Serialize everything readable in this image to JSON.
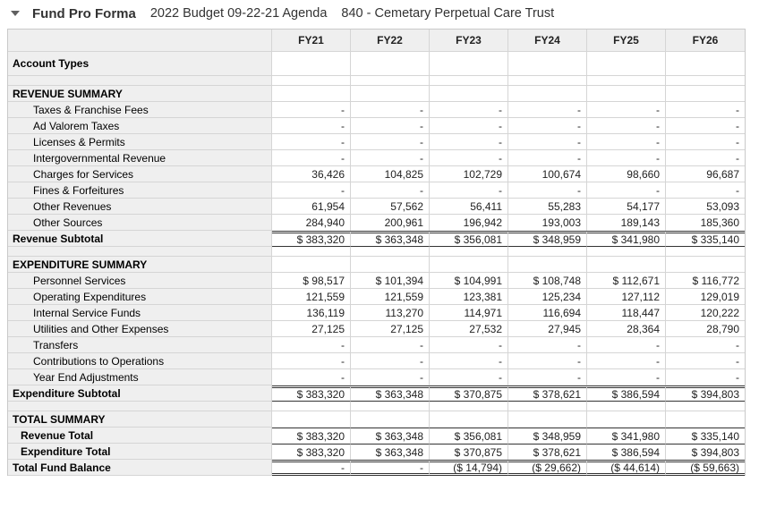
{
  "header": {
    "title": "Fund Pro Forma",
    "budget": "2022 Budget 09-22-21 Agenda",
    "fund": "840 - Cemetary Perpetual Care Trust",
    "collapse_icon": "caret-down-icon"
  },
  "colors": {
    "label_column_bg": "#efefef",
    "grid_border": "#d5d5d5",
    "emphasis_border": "#333333",
    "title_text": "#333333"
  },
  "table": {
    "columns": [
      "FY21",
      "FY22",
      "FY23",
      "FY24",
      "FY25",
      "FY26"
    ],
    "rows": [
      {
        "label": "Account Types",
        "type": "group",
        "cells": [
          "",
          "",
          "",
          "",
          "",
          ""
        ]
      },
      {
        "label": "",
        "type": "spacer",
        "cells": [
          "",
          "",
          "",
          "",
          "",
          ""
        ]
      },
      {
        "label": "REVENUE SUMMARY",
        "type": "section",
        "cells": [
          "",
          "",
          "",
          "",
          "",
          ""
        ]
      },
      {
        "label": "Taxes & Franchise Fees",
        "type": "detail",
        "cells": [
          "-",
          "-",
          "-",
          "-",
          "-",
          "-"
        ]
      },
      {
        "label": "Ad Valorem Taxes",
        "type": "detail",
        "cells": [
          "-",
          "-",
          "-",
          "-",
          "-",
          "-"
        ]
      },
      {
        "label": "Licenses & Permits",
        "type": "detail",
        "cells": [
          "-",
          "-",
          "-",
          "-",
          "-",
          "-"
        ]
      },
      {
        "label": "Intergovernmental Revenue",
        "type": "detail",
        "cells": [
          "-",
          "-",
          "-",
          "-",
          "-",
          "-"
        ]
      },
      {
        "label": "Charges for Services",
        "type": "detail",
        "cells": [
          "36,426",
          "104,825",
          "102,729",
          "100,674",
          "98,660",
          "96,687"
        ]
      },
      {
        "label": "Fines & Forfeitures",
        "type": "detail",
        "cells": [
          "-",
          "-",
          "-",
          "-",
          "-",
          "-"
        ]
      },
      {
        "label": "Other Revenues",
        "type": "detail",
        "cells": [
          "61,954",
          "57,562",
          "56,411",
          "55,283",
          "54,177",
          "53,093"
        ]
      },
      {
        "label": "Other Sources",
        "type": "detail",
        "cells": [
          "284,940",
          "200,961",
          "196,942",
          "193,003",
          "189,143",
          "185,360"
        ]
      },
      {
        "label": "Revenue Subtotal",
        "type": "subtotal",
        "cells": [
          "$ 383,320",
          "$ 363,348",
          "$ 356,081",
          "$ 348,959",
          "$ 341,980",
          "$ 335,140"
        ]
      },
      {
        "label": "",
        "type": "spacer",
        "cells": [
          "",
          "",
          "",
          "",
          "",
          ""
        ]
      },
      {
        "label": "EXPENDITURE SUMMARY",
        "type": "section",
        "cells": [
          "",
          "",
          "",
          "",
          "",
          ""
        ]
      },
      {
        "label": "Personnel Services",
        "type": "detail",
        "cells": [
          "$ 98,517",
          "$ 101,394",
          "$ 104,991",
          "$ 108,748",
          "$ 112,671",
          "$ 116,772"
        ]
      },
      {
        "label": "Operating Expenditures",
        "type": "detail",
        "cells": [
          "121,559",
          "121,559",
          "123,381",
          "125,234",
          "127,112",
          "129,019"
        ]
      },
      {
        "label": "Internal Service Funds",
        "type": "detail",
        "cells": [
          "136,119",
          "113,270",
          "114,971",
          "116,694",
          "118,447",
          "120,222"
        ]
      },
      {
        "label": "Utilities and Other Expenses",
        "type": "detail",
        "cells": [
          "27,125",
          "27,125",
          "27,532",
          "27,945",
          "28,364",
          "28,790"
        ]
      },
      {
        "label": "Transfers",
        "type": "detail",
        "cells": [
          "-",
          "-",
          "-",
          "-",
          "-",
          "-"
        ]
      },
      {
        "label": "Contributions to Operations",
        "type": "detail",
        "cells": [
          "-",
          "-",
          "-",
          "-",
          "-",
          "-"
        ]
      },
      {
        "label": "Year End Adjustments",
        "type": "detail",
        "cells": [
          "-",
          "-",
          "-",
          "-",
          "-",
          "-"
        ]
      },
      {
        "label": "Expenditure Subtotal",
        "type": "subtotal",
        "cells": [
          "$ 383,320",
          "$ 363,348",
          "$ 370,875",
          "$ 378,621",
          "$ 386,594",
          "$ 394,803"
        ]
      },
      {
        "label": "",
        "type": "spacer",
        "cells": [
          "",
          "",
          "",
          "",
          "",
          ""
        ]
      },
      {
        "label": "TOTAL SUMMARY",
        "type": "section",
        "cells": [
          "",
          "",
          "",
          "",
          "",
          ""
        ]
      },
      {
        "label": "Revenue Total",
        "type": "total",
        "cells": [
          "$ 383,320",
          "$ 363,348",
          "$ 356,081",
          "$ 348,959",
          "$ 341,980",
          "$ 335,140"
        ]
      },
      {
        "label": "Expenditure Total",
        "type": "total",
        "cells": [
          "$ 383,320",
          "$ 363,348",
          "$ 370,875",
          "$ 378,621",
          "$ 386,594",
          "$ 394,803"
        ]
      },
      {
        "label": "Total Fund Balance",
        "type": "grand",
        "cells": [
          "-",
          "-",
          "($ 14,794)",
          "($ 29,662)",
          "($ 44,614)",
          "($ 59,663)"
        ]
      }
    ]
  }
}
